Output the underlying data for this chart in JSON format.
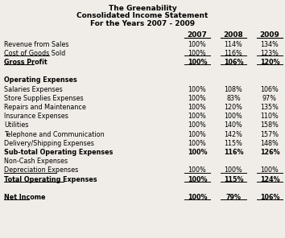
{
  "title_lines": [
    "The Greenability",
    "Consolidated Income Statement",
    "For the Years 2007 - 2009"
  ],
  "columns": [
    "2007",
    "2008",
    "2009"
  ],
  "rows": [
    {
      "label": "Revenue from Sales",
      "bold": false,
      "underline": false,
      "values": [
        "100%",
        "114%",
        "134%"
      ],
      "val_underline": false
    },
    {
      "label": "Cost of Goods Sold",
      "bold": false,
      "underline": true,
      "values": [
        "100%",
        "116%",
        "123%"
      ],
      "val_underline": true
    },
    {
      "label": "Gross Profit",
      "bold": true,
      "underline": true,
      "values": [
        "100%",
        "106%",
        "120%"
      ],
      "val_underline": true
    },
    {
      "label": "",
      "bold": false,
      "underline": false,
      "values": [
        "",
        "",
        ""
      ],
      "val_underline": false
    },
    {
      "label": "Operating Expenses",
      "bold": true,
      "underline": false,
      "values": [
        "",
        "",
        ""
      ],
      "val_underline": false
    },
    {
      "label": "Salaries Expenses",
      "bold": false,
      "underline": false,
      "values": [
        "100%",
        "108%",
        "106%"
      ],
      "val_underline": false
    },
    {
      "label": "Store Supplies Expenses",
      "bold": false,
      "underline": false,
      "values": [
        "100%",
        "83%",
        "97%"
      ],
      "val_underline": false
    },
    {
      "label": "Repairs and Maintenance",
      "bold": false,
      "underline": false,
      "values": [
        "100%",
        "120%",
        "135%"
      ],
      "val_underline": false
    },
    {
      "label": "Insurance Expenses",
      "bold": false,
      "underline": false,
      "values": [
        "100%",
        "100%",
        "110%"
      ],
      "val_underline": false
    },
    {
      "label": "Utilities",
      "bold": false,
      "underline": false,
      "values": [
        "100%",
        "140%",
        "158%"
      ],
      "val_underline": false
    },
    {
      "label": "Telephone and Communication",
      "bold": false,
      "underline": false,
      "values": [
        "100%",
        "142%",
        "157%"
      ],
      "val_underline": false
    },
    {
      "label": "Delivery/Shipping Expenses",
      "bold": false,
      "underline": false,
      "values": [
        "100%",
        "115%",
        "148%"
      ],
      "val_underline": false
    },
    {
      "label": "Sub-total Operating Expenses",
      "bold": true,
      "underline": false,
      "values": [
        "100%",
        "116%",
        "126%"
      ],
      "val_underline": false
    },
    {
      "label": "Non-Cash Expenses",
      "bold": false,
      "underline": false,
      "values": [
        "",
        "",
        ""
      ],
      "val_underline": false
    },
    {
      "label": "Depreciation Expenses",
      "bold": false,
      "underline": true,
      "values": [
        "100%",
        "100%",
        "100%"
      ],
      "val_underline": true
    },
    {
      "label": "Total Operating Expenses",
      "bold": true,
      "underline": true,
      "values": [
        "100%",
        "115%",
        "124%"
      ],
      "val_underline": true
    },
    {
      "label": "",
      "bold": false,
      "underline": false,
      "values": [
        "",
        "",
        ""
      ],
      "val_underline": false
    },
    {
      "label": "Net Income",
      "bold": true,
      "underline": true,
      "values": [
        "100%",
        "79%",
        "106%"
      ],
      "val_underline": true
    }
  ],
  "bg_color": "#f0ede8",
  "text_color": "#000000",
  "font_size": 5.8,
  "title_font_size": 6.5,
  "col_header_font_size": 6.5
}
